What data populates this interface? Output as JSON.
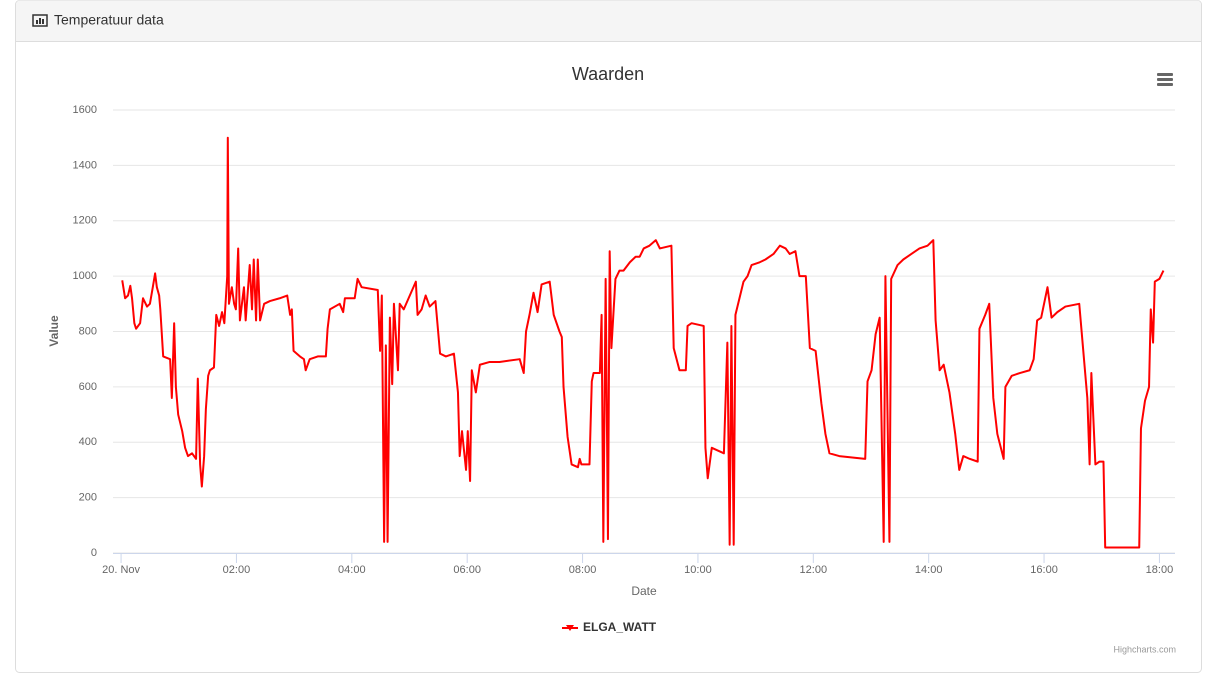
{
  "header": {
    "title": "Temperatuur data"
  },
  "chart_data": {
    "type": "line",
    "title": "Waarden",
    "x_label": "Date",
    "y_label": "Value",
    "credits": "Highcharts.com",
    "grid": true,
    "xlim": [
      -0.14,
      18.27
    ],
    "xticks": [
      {
        "value": 0,
        "label": "20. Nov"
      },
      {
        "value": 2,
        "label": "02:00"
      },
      {
        "value": 4,
        "label": "04:00"
      },
      {
        "value": 6,
        "label": "06:00"
      },
      {
        "value": 8,
        "label": "08:00"
      },
      {
        "value": 10,
        "label": "10:00"
      },
      {
        "value": 12,
        "label": "12:00"
      },
      {
        "value": 14,
        "label": "14:00"
      },
      {
        "value": 16,
        "label": "16:00"
      },
      {
        "value": 18,
        "label": "18:00"
      }
    ],
    "ylim": [
      0,
      1600
    ],
    "yticks": [
      0,
      200,
      400,
      600,
      800,
      1000,
      1200,
      1400,
      1600
    ],
    "x": [
      0.02,
      0.07,
      0.12,
      0.16,
      0.19,
      0.23,
      0.26,
      0.33,
      0.38,
      0.45,
      0.5,
      0.55,
      0.59,
      0.62,
      0.66,
      0.68,
      0.73,
      0.85,
      0.88,
      0.92,
      0.95,
      0.99,
      1.06,
      1.11,
      1.16,
      1.23,
      1.3,
      1.33,
      1.37,
      1.4,
      1.44,
      1.47,
      1.51,
      1.54,
      1.61,
      1.65,
      1.7,
      1.75,
      1.79,
      1.84,
      1.85,
      1.87,
      1.92,
      1.96,
      1.99,
      2.03,
      2.06,
      2.13,
      2.16,
      2.23,
      2.27,
      2.3,
      2.34,
      2.37,
      2.41,
      2.48,
      2.58,
      2.75,
      2.88,
      2.93,
      2.96,
      2.99,
      3.1,
      3.17,
      3.2,
      3.27,
      3.41,
      3.55,
      3.58,
      3.62,
      3.79,
      3.85,
      3.88,
      4.05,
      4.1,
      4.17,
      4.45,
      4.49,
      4.52,
      4.56,
      4.59,
      4.62,
      4.66,
      4.7,
      4.73,
      4.8,
      4.83,
      4.9,
      5.11,
      5.14,
      5.21,
      5.28,
      5.35,
      5.45,
      5.53,
      5.63,
      5.77,
      5.84,
      5.87,
      5.91,
      5.98,
      6.01,
      6.05,
      6.08,
      6.15,
      6.22,
      6.39,
      6.56,
      6.91,
      6.98,
      7.02,
      7.08,
      7.15,
      7.22,
      7.29,
      7.43,
      7.5,
      7.6,
      7.64,
      7.67,
      7.74,
      7.81,
      7.92,
      7.95,
      7.98,
      8.12,
      8.16,
      8.19,
      8.3,
      8.33,
      8.36,
      8.4,
      8.44,
      8.47,
      8.5,
      8.57,
      8.64,
      8.71,
      8.82,
      8.92,
      8.99,
      9.06,
      9.16,
      9.27,
      9.34,
      9.54,
      9.58,
      9.68,
      9.79,
      9.82,
      9.89,
      10.1,
      10.13,
      10.17,
      10.24,
      10.45,
      10.51,
      10.55,
      10.58,
      10.62,
      10.65,
      10.72,
      10.79,
      10.86,
      10.93,
      11.07,
      11.17,
      11.31,
      11.42,
      11.52,
      11.59,
      11.69,
      11.76,
      11.87,
      11.94,
      12.04,
      12.14,
      12.21,
      12.28,
      12.45,
      12.9,
      12.94,
      13.01,
      13.08,
      13.15,
      13.22,
      13.25,
      13.32,
      13.35,
      13.46,
      13.56,
      13.7,
      13.84,
      13.98,
      14.08,
      14.12,
      14.19,
      14.26,
      14.36,
      14.46,
      14.53,
      14.6,
      14.71,
      14.85,
      14.88,
      14.98,
      15.05,
      15.12,
      15.19,
      15.3,
      15.33,
      15.44,
      15.58,
      15.75,
      15.82,
      15.88,
      15.95,
      16.06,
      16.13,
      16.23,
      16.37,
      16.61,
      16.68,
      16.75,
      16.79,
      16.82,
      16.89,
      16.96,
      17.03,
      17.06,
      17.65,
      17.68,
      17.75,
      17.82,
      17.85,
      17.89,
      17.92,
      18.0,
      18.07
    ],
    "series": [
      {
        "name": "ELGA_WATT",
        "color": "#ff0000",
        "values": [
          985,
          920,
          930,
          965,
          920,
          830,
          810,
          830,
          920,
          890,
          900,
          960,
          1010,
          960,
          930,
          880,
          710,
          700,
          560,
          830,
          600,
          500,
          440,
          380,
          350,
          360,
          340,
          630,
          320,
          240,
          350,
          520,
          640,
          660,
          670,
          860,
          820,
          870,
          830,
          1000,
          1500,
          900,
          960,
          900,
          880,
          1100,
          840,
          960,
          840,
          1040,
          880,
          1060,
          840,
          1060,
          840,
          900,
          910,
          920,
          930,
          860,
          880,
          730,
          710,
          700,
          660,
          700,
          710,
          710,
          810,
          880,
          900,
          870,
          920,
          920,
          990,
          960,
          950,
          730,
          930,
          40,
          750,
          40,
          850,
          610,
          900,
          660,
          900,
          880,
          980,
          860,
          880,
          930,
          890,
          910,
          720,
          710,
          720,
          580,
          350,
          440,
          300,
          440,
          260,
          660,
          580,
          680,
          690,
          690,
          700,
          650,
          800,
          860,
          940,
          870,
          970,
          980,
          860,
          800,
          780,
          600,
          420,
          320,
          310,
          340,
          320,
          320,
          620,
          650,
          650,
          860,
          40,
          990,
          50,
          1090,
          740,
          990,
          1020,
          1020,
          1050,
          1070,
          1070,
          1100,
          1110,
          1130,
          1100,
          1110,
          740,
          660,
          660,
          820,
          830,
          820,
          380,
          270,
          380,
          360,
          760,
          30,
          820,
          30,
          860,
          920,
          980,
          1000,
          1040,
          1050,
          1060,
          1080,
          1110,
          1100,
          1080,
          1090,
          1000,
          1000,
          740,
          730,
          540,
          430,
          360,
          350,
          340,
          620,
          660,
          790,
          850,
          40,
          1000,
          40,
          990,
          1040,
          1060,
          1080,
          1100,
          1110,
          1130,
          840,
          660,
          680,
          580,
          430,
          300,
          350,
          340,
          330,
          810,
          860,
          900,
          560,
          430,
          340,
          600,
          640,
          650,
          660,
          700,
          840,
          850,
          960,
          850,
          870,
          890,
          900,
          730,
          560,
          320,
          650,
          320,
          330,
          330,
          20,
          20,
          450,
          550,
          600,
          880,
          760,
          980,
          990,
          1020
        ]
      }
    ]
  }
}
